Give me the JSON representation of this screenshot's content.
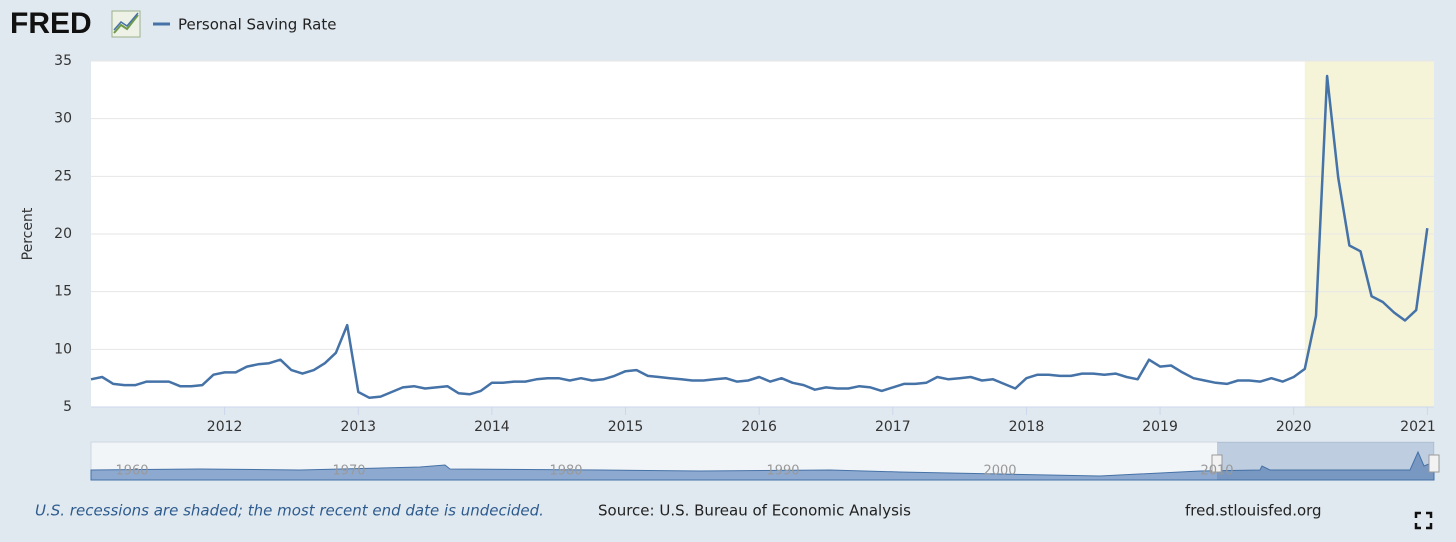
{
  "chart_data": {
    "type": "line",
    "logo": "FRED",
    "y_label": "Percent",
    "footnote": "U.S. recessions are shaded; the most recent end date is undecided.",
    "source": "Source: U.S. Bureau of Economic Analysis",
    "site": "fred.stlouisfed.org",
    "recession_start": 2020.083,
    "xlim": [
      2011,
      2021.05
    ],
    "xticks": [
      2012,
      2013,
      2014,
      2015,
      2016,
      2017,
      2018,
      2019,
      2020,
      2021
    ],
    "ylim": [
      5,
      35
    ],
    "yticks": [
      5,
      10,
      15,
      20,
      25,
      30,
      35
    ],
    "grid": true,
    "navigator_labels": [
      "1960",
      "1970",
      "1980",
      "1990",
      "2000",
      "2010"
    ],
    "x": [
      2011,
      2011.083,
      2011.167,
      2011.25,
      2011.333,
      2011.417,
      2011.5,
      2011.583,
      2011.667,
      2011.75,
      2011.833,
      2011.917,
      2012,
      2012.083,
      2012.167,
      2012.25,
      2012.333,
      2012.417,
      2012.5,
      2012.583,
      2012.667,
      2012.75,
      2012.833,
      2012.917,
      2013,
      2013.083,
      2013.167,
      2013.25,
      2013.333,
      2013.417,
      2013.5,
      2013.583,
      2013.667,
      2013.75,
      2013.833,
      2013.917,
      2014,
      2014.083,
      2014.167,
      2014.25,
      2014.333,
      2014.417,
      2014.5,
      2014.583,
      2014.667,
      2014.75,
      2014.833,
      2014.917,
      2015,
      2015.083,
      2015.167,
      2015.25,
      2015.333,
      2015.417,
      2015.5,
      2015.583,
      2015.667,
      2015.75,
      2015.833,
      2015.917,
      2016,
      2016.083,
      2016.167,
      2016.25,
      2016.333,
      2016.417,
      2016.5,
      2016.583,
      2016.667,
      2016.75,
      2016.833,
      2016.917,
      2017,
      2017.083,
      2017.167,
      2017.25,
      2017.333,
      2017.417,
      2017.5,
      2017.583,
      2017.667,
      2017.75,
      2017.833,
      2017.917,
      2018,
      2018.083,
      2018.167,
      2018.25,
      2018.333,
      2018.417,
      2018.5,
      2018.583,
      2018.667,
      2018.75,
      2018.833,
      2018.917,
      2019,
      2019.083,
      2019.167,
      2019.25,
      2019.333,
      2019.417,
      2019.5,
      2019.583,
      2019.667,
      2019.75,
      2019.833,
      2019.917,
      2020,
      2020.083,
      2020.167,
      2020.25,
      2020.333,
      2020.417,
      2020.5,
      2020.583,
      2020.667,
      2020.75,
      2020.833,
      2020.917,
      2021
    ],
    "series": [
      {
        "name": "Personal Saving Rate",
        "color": "#4572a7",
        "values": [
          7.4,
          7.6,
          7.0,
          6.9,
          6.9,
          7.2,
          7.2,
          7.2,
          6.8,
          6.8,
          6.9,
          7.8,
          8.0,
          8.0,
          8.5,
          8.7,
          8.8,
          9.1,
          8.2,
          7.9,
          8.2,
          8.8,
          9.7,
          12.1,
          6.3,
          5.8,
          5.9,
          6.3,
          6.7,
          6.8,
          6.6,
          6.7,
          6.8,
          6.2,
          6.1,
          6.4,
          7.1,
          7.1,
          7.2,
          7.2,
          7.4,
          7.5,
          7.5,
          7.3,
          7.5,
          7.3,
          7.4,
          7.7,
          8.1,
          8.2,
          7.7,
          7.6,
          7.5,
          7.4,
          7.3,
          7.3,
          7.4,
          7.5,
          7.2,
          7.3,
          7.6,
          7.2,
          7.5,
          7.1,
          6.9,
          6.5,
          6.7,
          6.6,
          6.6,
          6.8,
          6.7,
          6.4,
          6.7,
          7.0,
          7.0,
          7.1,
          7.6,
          7.4,
          7.5,
          7.6,
          7.3,
          7.4,
          7.0,
          6.6,
          7.5,
          7.8,
          7.8,
          7.7,
          7.7,
          7.9,
          7.9,
          7.8,
          7.9,
          7.6,
          7.4,
          9.1,
          8.5,
          8.6,
          8.0,
          7.5,
          7.3,
          7.1,
          7.0,
          7.3,
          7.3,
          7.2,
          7.5,
          7.2,
          7.6,
          8.3,
          12.9,
          33.7,
          24.9,
          19.0,
          18.5,
          14.6,
          14.1,
          13.2,
          12.5,
          13.4,
          20.5
        ]
      }
    ]
  }
}
